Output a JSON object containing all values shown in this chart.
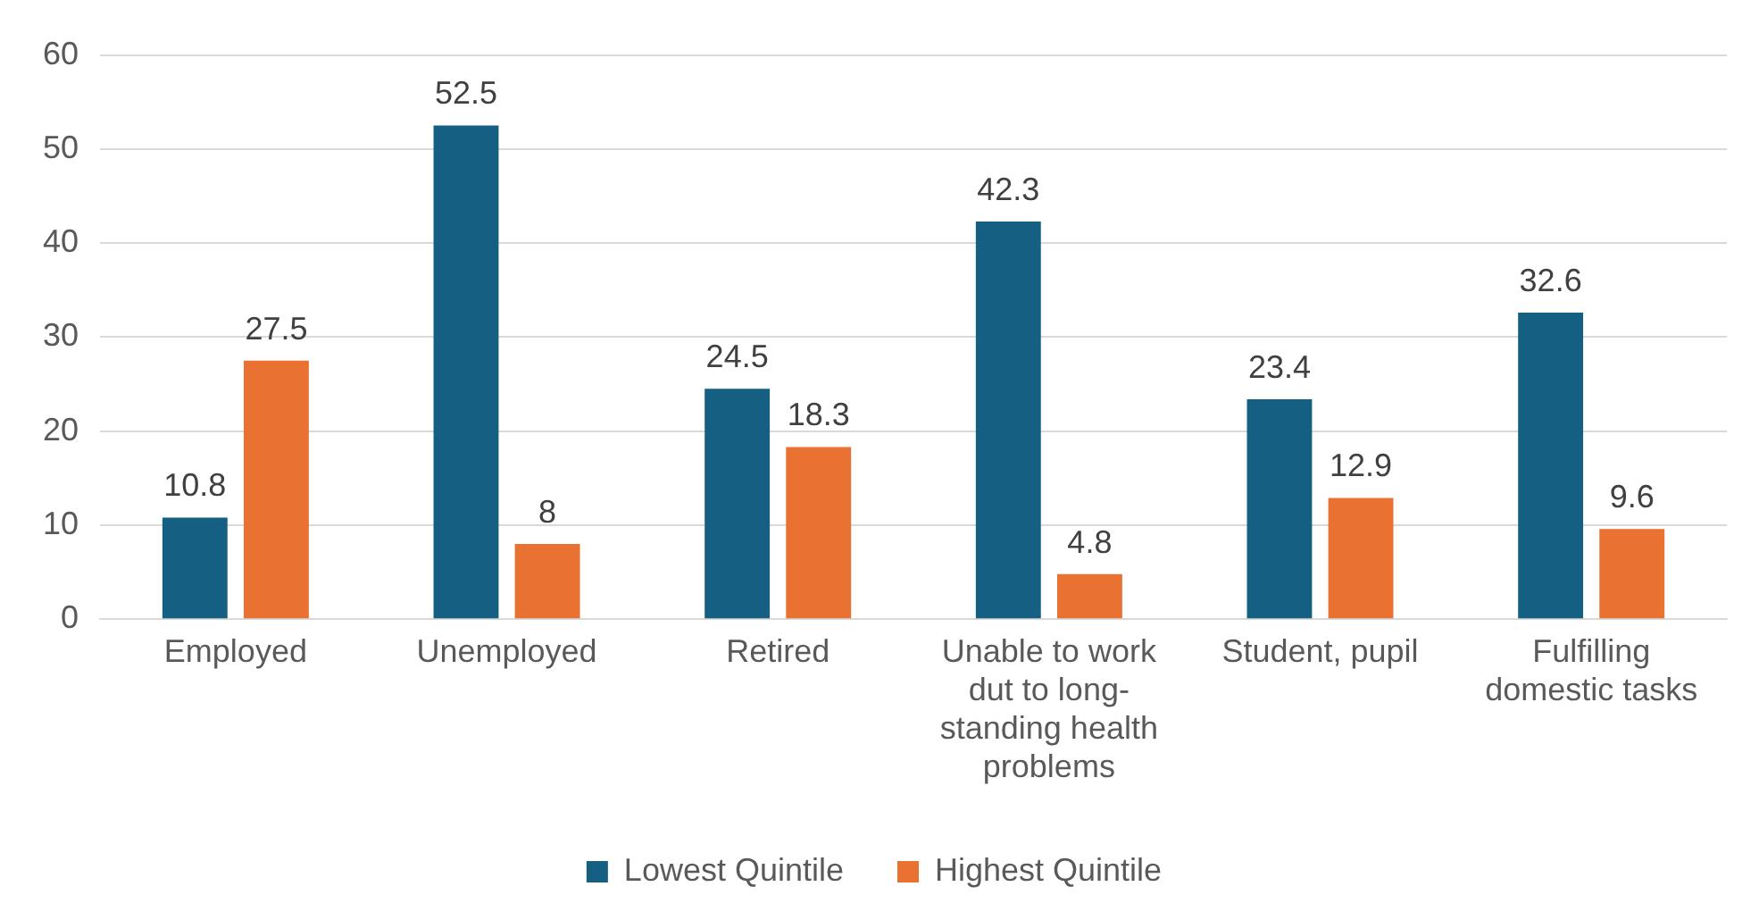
{
  "chart_data": {
    "type": "bar",
    "categories": [
      "Employed",
      "Unemployed",
      "Retired",
      "Unable to work dut to long-standing health problems",
      "Student, pupil",
      "Fulfilling domestic tasks"
    ],
    "series": [
      {
        "name": "Lowest Quintile",
        "color": "#156082",
        "values": [
          10.8,
          52.5,
          24.5,
          42.3,
          23.4,
          32.6
        ]
      },
      {
        "name": "Highest Quintile",
        "color": "#e97132",
        "values": [
          27.5,
          8,
          18.3,
          4.8,
          12.9,
          9.6
        ]
      }
    ],
    "ylim": [
      0,
      60
    ],
    "yticks": [
      0,
      10,
      20,
      30,
      40,
      50,
      60
    ],
    "grid": "y",
    "legend": "bottom",
    "data_labels": true
  }
}
